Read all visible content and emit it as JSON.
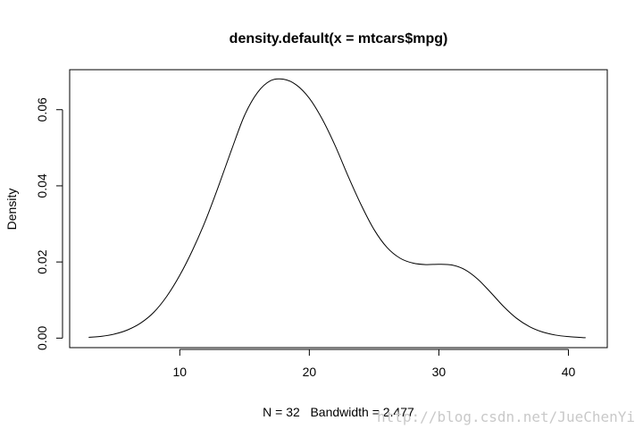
{
  "chart_data": {
    "type": "line",
    "title": "density.default(x = mtcars$mpg)",
    "xlabel": "N = 32   Bandwidth = 2.477",
    "ylabel": "Density",
    "xlim": [
      1.5,
      43.0
    ],
    "ylim": [
      -0.0025,
      0.0705
    ],
    "x_ticks": [
      10,
      20,
      30,
      40
    ],
    "y_ticks": [
      0.0,
      0.02,
      0.04,
      0.06
    ],
    "x_tick_labels": [
      "10",
      "20",
      "30",
      "40"
    ],
    "y_tick_labels": [
      "0.00",
      "0.02",
      "0.04",
      "0.06"
    ],
    "grid": false,
    "series": [
      {
        "x": [
          2.97,
          4,
          5,
          6,
          7,
          8,
          9,
          10,
          11,
          12,
          13,
          14,
          15,
          16,
          17,
          18,
          19,
          20,
          21,
          22,
          23,
          24,
          25,
          26,
          27,
          28,
          29,
          30,
          31,
          32,
          33,
          34,
          35,
          36,
          37,
          38,
          39,
          40,
          41.33
        ],
        "y": [
          0.0002,
          0.0005,
          0.0011,
          0.0022,
          0.004,
          0.0068,
          0.011,
          0.0165,
          0.0232,
          0.031,
          0.04,
          0.0495,
          0.0585,
          0.0645,
          0.0676,
          0.068,
          0.0665,
          0.063,
          0.0575,
          0.0505,
          0.0425,
          0.035,
          0.0285,
          0.0238,
          0.021,
          0.0197,
          0.0193,
          0.0194,
          0.0192,
          0.018,
          0.0155,
          0.012,
          0.0083,
          0.0052,
          0.003,
          0.0016,
          0.0008,
          0.0004,
          0.0001
        ]
      }
    ]
  },
  "watermark": "http://blog.csdn.net/JueChenYi"
}
